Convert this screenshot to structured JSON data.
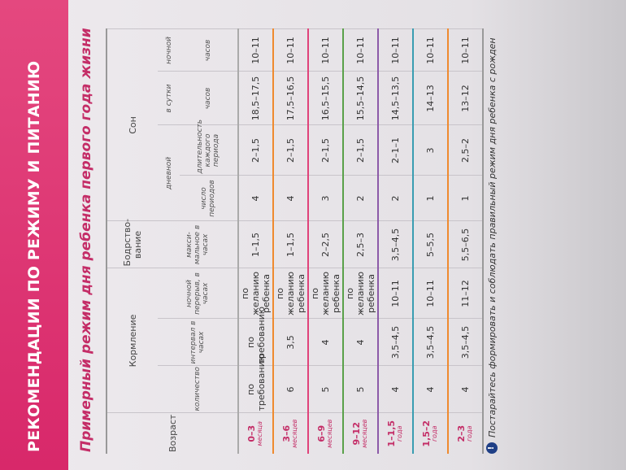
{
  "header": {
    "title": "РЕКОМЕНДАЦИИ ПО РЕЖИМУ И ПИТАНИЮ"
  },
  "table": {
    "title": "Примерный режим дня ребенка первого года жизни",
    "head": {
      "age": "Возраст",
      "feeding": "Кормление",
      "feeding_count": "количество",
      "feeding_interval": "интервал в часах",
      "night_break": "ночной перерыв, в часах",
      "wake": "Бодрство-вание",
      "wake_max": "макси-мальное в часах",
      "sleep": "Сон",
      "sleep_day": "дневной",
      "day_periods": "число периодов",
      "day_length": "длительность каждого периода",
      "per_day": "в сутки",
      "night": "ночной",
      "per_day_unit": "часов",
      "night_unit": "часов"
    },
    "rows": [
      {
        "age": "0–3",
        "unit": "месяца",
        "cells": [
          "по требованию",
          "по требованию",
          "по желанию ребенка",
          "1–1,5",
          "4",
          "2–1,5",
          "18,5–17,5",
          "10–11"
        ]
      },
      {
        "age": "3–6",
        "unit": "месяцев",
        "cells": [
          "6",
          "3,5",
          "по желанию ребенка",
          "1–1,5",
          "4",
          "2–1,5",
          "17,5–16,5",
          "10–11"
        ]
      },
      {
        "age": "6–9",
        "unit": "месяцев",
        "cells": [
          "5",
          "4",
          "по желанию ребенка",
          "2–2,5",
          "3",
          "2–1,5",
          "16,5–15,5",
          "10–11"
        ]
      },
      {
        "age": "9–12",
        "unit": "месяцев",
        "cells": [
          "5",
          "4",
          "по желанию ребенка",
          "2,5–3",
          "2",
          "2–1,5",
          "15,5–14,5",
          "10–11"
        ]
      },
      {
        "age": "1–1,5",
        "unit": "года",
        "cells": [
          "4",
          "3,5–4,5",
          "10–11",
          "3,5–4,5",
          "2",
          "2–1–1",
          "14,5–13,5",
          "10–11"
        ]
      },
      {
        "age": "1,5–2",
        "unit": "года",
        "cells": [
          "4",
          "3,5–4,5",
          "10–11",
          "5–5,5",
          "1",
          "3",
          "14–13",
          "10–11"
        ]
      },
      {
        "age": "2–3",
        "unit": "года",
        "cells": [
          "4",
          "3,5–4,5",
          "11–12",
          "5,5–6,5",
          "1",
          "2,5–2",
          "13–12",
          "10–11"
        ]
      }
    ]
  },
  "footnote": "Постарайтесь формировать и соблюдать правильный режим дня ребенка с рожден"
}
